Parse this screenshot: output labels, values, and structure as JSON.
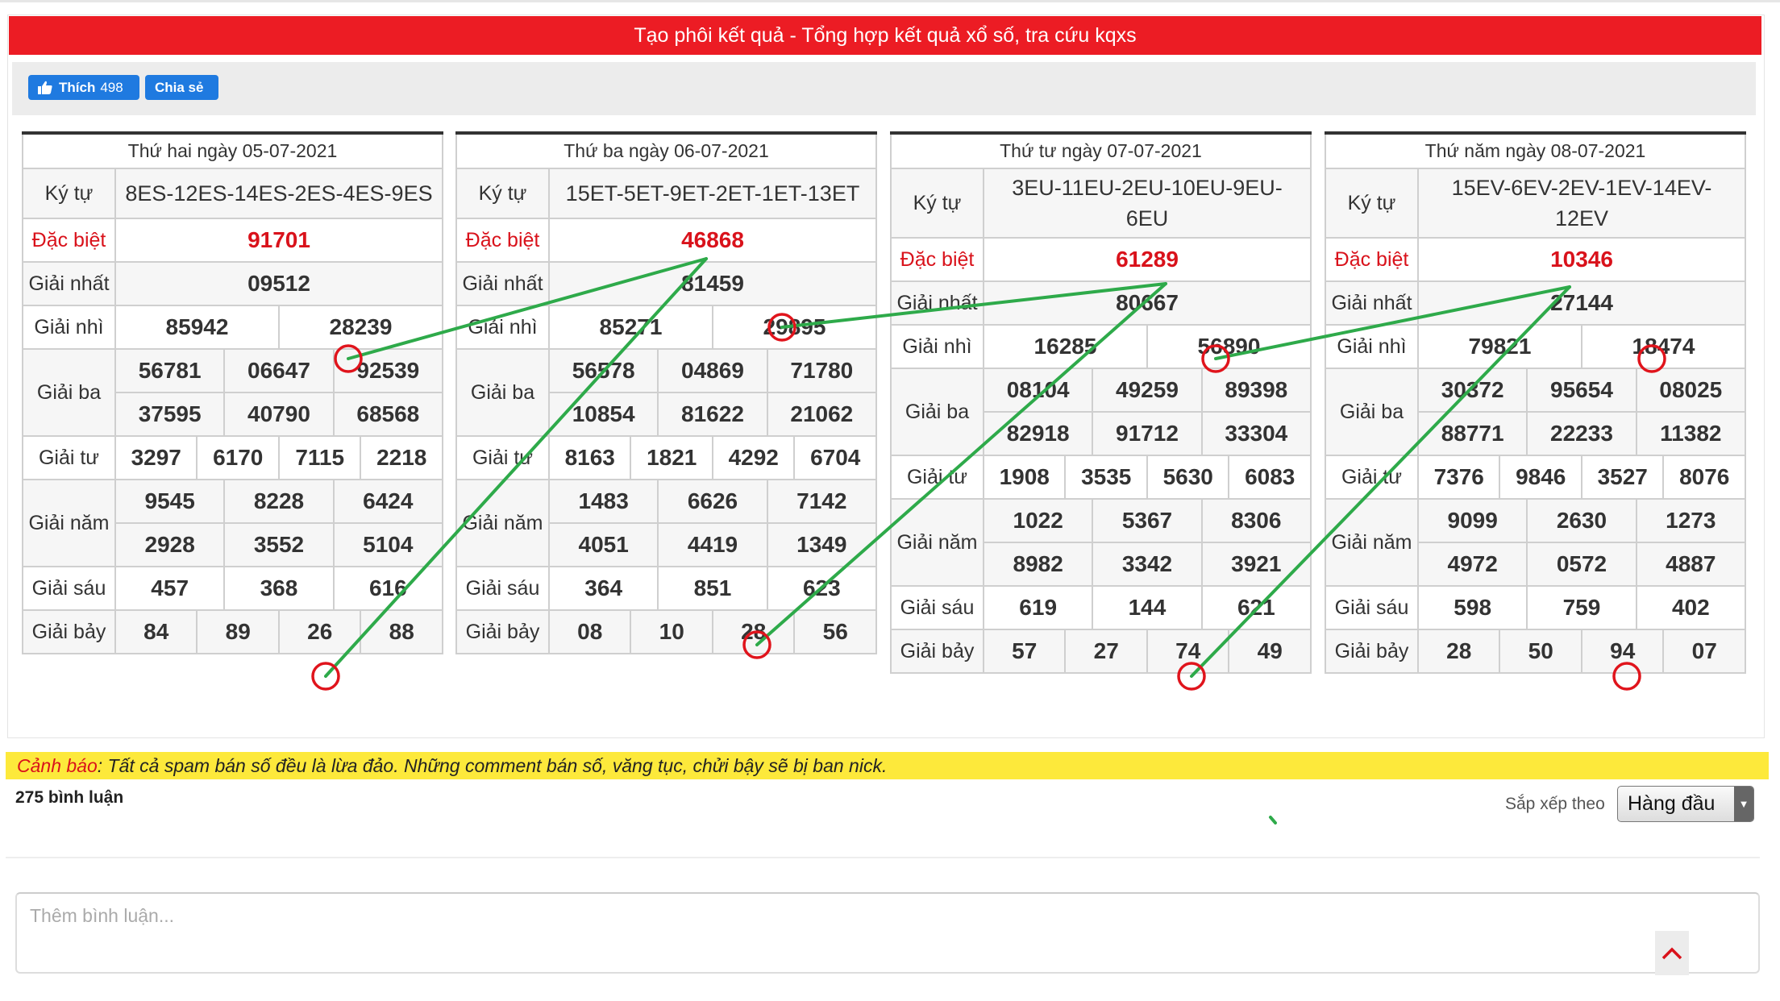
{
  "header": {
    "title": "Tạo phôi kết quả - Tổng hợp kết quả xổ số, tra cứu kqxs"
  },
  "social": {
    "like_label": "Thích",
    "like_count": "498",
    "share_label": "Chia sẻ"
  },
  "labels": {
    "ky_tu": "Ký tự",
    "dac_biet": "Đặc biệt",
    "nhat": "Giải nhất",
    "nhi": "Giải nhì",
    "ba": "Giải ba",
    "tu": "Giải tư",
    "nam": "Giải năm",
    "sau": "Giải sáu",
    "bay": "Giải bảy"
  },
  "tables": [
    {
      "date": "Thứ hai ngày 05-07-2021",
      "ky_tu": "8ES-12ES-14ES-2ES-4ES-9ES",
      "dac_biet": "91701",
      "nhat": "09512",
      "nhi": [
        "85942",
        "28239"
      ],
      "ba": [
        "56781",
        "06647",
        "92539",
        "37595",
        "40790",
        "68568"
      ],
      "tu": [
        "3297",
        "6170",
        "7115",
        "2218"
      ],
      "nam": [
        "9545",
        "8228",
        "6424",
        "2928",
        "3552",
        "5104"
      ],
      "sau": [
        "457",
        "368",
        "616"
      ],
      "bay": [
        "84",
        "89",
        "26",
        "88"
      ]
    },
    {
      "date": "Thứ ba ngày 06-07-2021",
      "ky_tu": "15ET-5ET-9ET-2ET-1ET-13ET",
      "dac_biet": "46868",
      "nhat": "81459",
      "nhi": [
        "85271",
        "29895"
      ],
      "ba": [
        "56578",
        "04869",
        "71780",
        "10854",
        "81622",
        "21062"
      ],
      "tu": [
        "8163",
        "1821",
        "4292",
        "6704"
      ],
      "nam": [
        "1483",
        "6626",
        "7142",
        "4051",
        "4419",
        "1349"
      ],
      "sau": [
        "364",
        "851",
        "623"
      ],
      "bay": [
        "08",
        "10",
        "28",
        "56"
      ]
    },
    {
      "date": "Thứ tư ngày 07-07-2021",
      "ky_tu": "3EU-11EU-2EU-10EU-9EU-6EU",
      "dac_biet": "61289",
      "nhat": "80667",
      "nhi": [
        "16285",
        "56890"
      ],
      "ba": [
        "08104",
        "49259",
        "89398",
        "82918",
        "91712",
        "33304"
      ],
      "tu": [
        "1908",
        "3535",
        "5630",
        "6083"
      ],
      "nam": [
        "1022",
        "5367",
        "8306",
        "8982",
        "3342",
        "3921"
      ],
      "sau": [
        "619",
        "144",
        "621"
      ],
      "bay": [
        "57",
        "27",
        "74",
        "49"
      ]
    },
    {
      "date": "Thứ năm ngày 08-07-2021",
      "ky_tu": "15EV-6EV-2EV-1EV-14EV-12EV",
      "dac_biet": "10346",
      "nhat": "27144",
      "nhi": [
        "79821",
        "18474"
      ],
      "ba": [
        "30372",
        "95654",
        "08025",
        "88771",
        "22233",
        "11382"
      ],
      "tu": [
        "7376",
        "9846",
        "3527",
        "8076"
      ],
      "nam": [
        "9099",
        "2630",
        "1273",
        "4972",
        "0572",
        "4887"
      ],
      "sau": [
        "598",
        "759",
        "402"
      ],
      "bay": [
        "28",
        "50",
        "94",
        "07"
      ]
    }
  ],
  "warning": {
    "label": "Cảnh báo",
    "text": ": Tất cả spam bán số đều là lừa đảo. Những comment bán số, văng tục, chửi bậy sẽ bị ban nick."
  },
  "comments": {
    "count_label": "275 bình luận",
    "sort_label": "Sắp xếp theo",
    "sort_value": "Hàng đầu",
    "input_placeholder": "Thêm bình luận..."
  },
  "colors": {
    "brand_red": "#ec1c24",
    "fb_blue": "#1f7ae0",
    "warning_yellow": "#fde93b",
    "annotation_green": "#2eaa4a",
    "annotation_circle": "#e0141c"
  }
}
